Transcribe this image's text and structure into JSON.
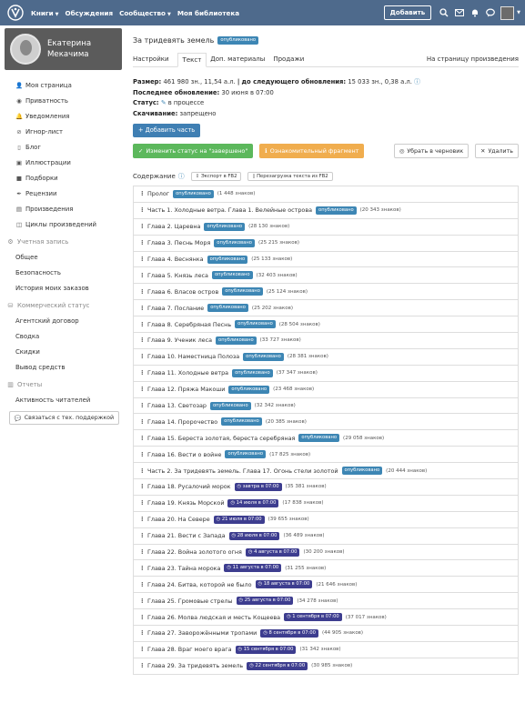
{
  "nav": {
    "items": [
      "Книги",
      "Обсуждения",
      "Сообщество",
      "Моя библиотека"
    ],
    "add_label": "Добавить"
  },
  "profile": {
    "first_name": "Екатерина",
    "last_name": "Мекачима"
  },
  "sidebar": {
    "items": [
      "Моя страница",
      "Приватность",
      "Уведомления",
      "Игнор-лист",
      "Блог",
      "Иллюстрации",
      "Подборки",
      "Рецензии",
      "Произведения",
      "Циклы произведений"
    ],
    "account_header": "Учетная запись",
    "account_items": [
      "Общее",
      "Безопасность",
      "История моих заказов"
    ],
    "commerce_header": "Коммерческий статус",
    "commerce_items": [
      "Агентский договор",
      "Сводка",
      "Скидки",
      "Вывод средств"
    ],
    "reports_header": "Отчеты",
    "reports_items": [
      "Активность читателей"
    ],
    "support_label": "Связаться с тех. поддержкой"
  },
  "work": {
    "title": "За тридевять земель",
    "status": "опубликовано",
    "tabs": [
      "Настройки",
      "Текст",
      "Доп. материалы",
      "Продажи"
    ],
    "tab_right": "На страницу произведения",
    "size_label": "Размер:",
    "size_value": "461 980 зн., 11,54 а.л.",
    "next_label": "до следующего обновления:",
    "next_value": "15 033 зн., 0,38 а.л.",
    "updated_label": "Последнее обновление:",
    "updated_value": "30 июня в 07:00",
    "state_label": "Статус:",
    "state_value": "в процессе",
    "download_label": "Скачивание:",
    "download_value": "запрещено"
  },
  "buttons": {
    "add_part": "+ Добавить часть",
    "change_status": "Изменить статус на \"завершено\"",
    "fragment": "Ознакомительный фрагмент",
    "draft": "Убрать в черновик",
    "delete": "Удалить",
    "export": "Экспорт в FB2",
    "reload": "Перезагрузка текста из FB2"
  },
  "content_label": "Содержание",
  "chapters": [
    {
      "title": "Пролог",
      "badge": "опубликовано",
      "count": "(1 448 знаков)",
      "type": "pub"
    },
    {
      "title": "Часть 1. Холодные ветра. Глава 1. Велейные острова",
      "badge": "опубликовано",
      "count": "(20 343 знаков)",
      "type": "pub"
    },
    {
      "title": "Глава 2. Царевна",
      "badge": "опубликовано",
      "count": "(28 130 знаков)",
      "type": "pub"
    },
    {
      "title": "Глава 3. Песнь Моря",
      "badge": "опубликовано",
      "count": "(25 215 знаков)",
      "type": "pub"
    },
    {
      "title": "Глава 4. Веснянка",
      "badge": "опубликовано",
      "count": "(25 133 знаков)",
      "type": "pub"
    },
    {
      "title": "Глава 5. Князь леса",
      "badge": "опубликовано",
      "count": "(32 403 знаков)",
      "type": "pub"
    },
    {
      "title": "Глава 6. Власов остров",
      "badge": "опубликовано",
      "count": "(25 124 знаков)",
      "type": "pub"
    },
    {
      "title": "Глава 7. Послание",
      "badge": "опубликовано",
      "count": "(25 202 знаков)",
      "type": "pub"
    },
    {
      "title": "Глава 8. Серебряная Песнь",
      "badge": "опубликовано",
      "count": "(28 504 знаков)",
      "type": "pub"
    },
    {
      "title": "Глава 9. Ученик леса",
      "badge": "опубликовано",
      "count": "(33 727 знаков)",
      "type": "pub"
    },
    {
      "title": "Глава 10. Наместница Полоза",
      "badge": "опубликовано",
      "count": "(28 381 знаков)",
      "type": "pub"
    },
    {
      "title": "Глава 11. Холодные ветра",
      "badge": "опубликовано",
      "count": "(37 347 знаков)",
      "type": "pub"
    },
    {
      "title": "Глава 12. Пряжа Макоши",
      "badge": "опубликовано",
      "count": "(23 468 знаков)",
      "type": "pub"
    },
    {
      "title": "Глава 13. Светозар",
      "badge": "опубликовано",
      "count": "(32 342 знаков)",
      "type": "pub"
    },
    {
      "title": "Глава 14. Пророчество",
      "badge": "опубликовано",
      "count": "(20 385 знаков)",
      "type": "pub"
    },
    {
      "title": "Глава 15. Береста золотая, береста серебряная",
      "badge": "опубликовано",
      "count": "(29 058 знаков)",
      "type": "pub"
    },
    {
      "title": "Глава 16. Вести о войне",
      "badge": "опубликовано",
      "count": "(17 825 знаков)",
      "type": "pub"
    },
    {
      "title": "Часть 2. За тридевять земель. Глава 17. Огонь стели золотой",
      "badge": "опубликовано",
      "count": "(20 444 знаков)",
      "type": "pub"
    },
    {
      "title": "Глава 18. Русалочий морок",
      "badge": "завтра в 07:00",
      "count": "(35 381 знаков)",
      "type": "sch"
    },
    {
      "title": "Глава 19. Князь Морской",
      "badge": "14 июля в 07:00",
      "count": "(17 838 знаков)",
      "type": "sch"
    },
    {
      "title": "Глава 20. На Севере",
      "badge": "21 июля в 07:00",
      "count": "(39 655 знаков)",
      "type": "sch"
    },
    {
      "title": "Глава 21. Вести с Запада",
      "badge": "28 июля в 07:00",
      "count": "(36 489 знаков)",
      "type": "sch"
    },
    {
      "title": "Глава 22. Война золотого огня",
      "badge": "4 августа в 07:00",
      "count": "(30 200 знаков)",
      "type": "sch"
    },
    {
      "title": "Глава 23. Тайна морока",
      "badge": "11 августа в 07:00",
      "count": "(31 255 знаков)",
      "type": "sch"
    },
    {
      "title": "Глава 24. Битва, которой не было",
      "badge": "18 августа в 07:00",
      "count": "(21 646 знаков)",
      "type": "sch"
    },
    {
      "title": "Глава 25. Громовые стрелы",
      "badge": "25 августа в 07:00",
      "count": "(34 278 знаков)",
      "type": "sch"
    },
    {
      "title": "Глава 26. Молва людская и месть Кощеева",
      "badge": "1 сентября в 07:00",
      "count": "(37 017 знаков)",
      "type": "sch"
    },
    {
      "title": "Глава 27. Заворожёнными тропами",
      "badge": "8 сентября в 07:00",
      "count": "(44 905 знаков)",
      "type": "sch"
    },
    {
      "title": "Глава 28. Враг моего врага",
      "badge": "15 сентября в 07:00",
      "count": "(31 342 знаков)",
      "type": "sch"
    },
    {
      "title": "Глава 29. За тридевять земель",
      "badge": "22 сентября в 07:00",
      "count": "(30 985 знаков)",
      "type": "sch"
    }
  ],
  "colors": {
    "topbar": "#4e6a8c",
    "published": "#3d86b4",
    "scheduled": "#3d3d8f",
    "green": "#5cb85c",
    "orange": "#f0ad4e"
  }
}
